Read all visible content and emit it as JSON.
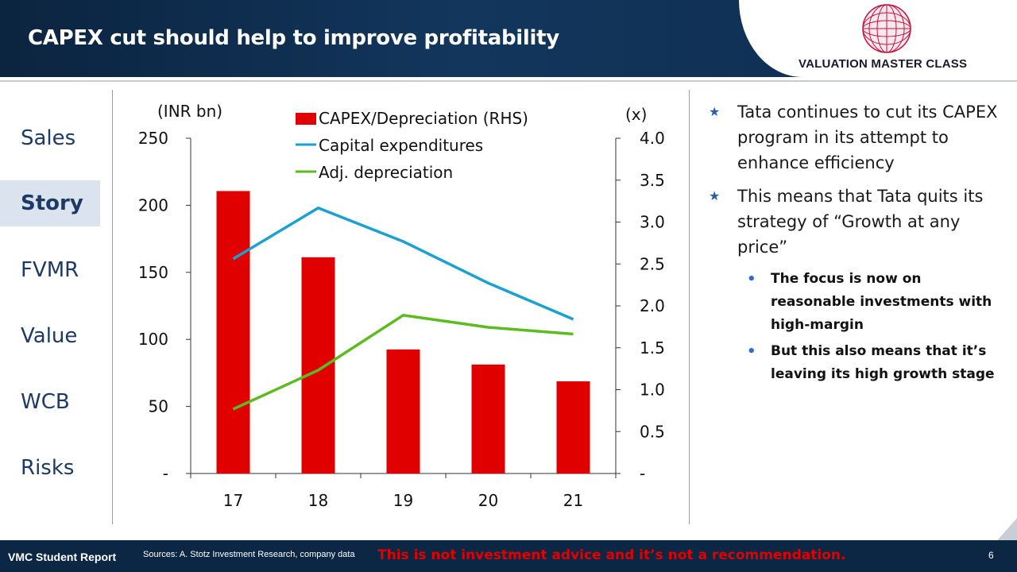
{
  "header": {
    "title": "CAPEX cut should help to improve profitability",
    "logo_text": "VALUATION MASTER CLASS"
  },
  "nav": {
    "items": [
      {
        "label": "Sales",
        "active": false
      },
      {
        "label": "Story",
        "active": true
      },
      {
        "label": "FVMR",
        "active": false
      },
      {
        "label": "Value",
        "active": false
      },
      {
        "label": "WCB",
        "active": false
      },
      {
        "label": "Risks",
        "active": false
      }
    ]
  },
  "chart_data": {
    "type": "bar",
    "left_unit": "(INR bn)",
    "right_unit": "(x)",
    "categories": [
      "17",
      "18",
      "19",
      "20",
      "21"
    ],
    "left_ticks": [
      "-",
      "50",
      "100",
      "150",
      "200",
      "250"
    ],
    "right_ticks": [
      "-",
      "0.5",
      "1.0",
      "1.5",
      "2.0",
      "2.5",
      "3.0",
      "3.5",
      "4.0"
    ],
    "ylim_left": [
      0,
      250
    ],
    "ylim_right": [
      0,
      4.0
    ],
    "series": [
      {
        "name": "CAPEX/Depreciation (RHS)",
        "type": "bar",
        "axis": "right",
        "color": "#e00000",
        "values": [
          3.37,
          2.58,
          1.48,
          1.3,
          1.1
        ]
      },
      {
        "name": "Capital expenditures",
        "type": "line",
        "axis": "left",
        "color": "#1ba1d1",
        "values": [
          160,
          198,
          173,
          142,
          115
        ]
      },
      {
        "name": "Adj. depreciation",
        "type": "line",
        "axis": "left",
        "color": "#5bbb1f",
        "values": [
          48,
          77,
          118,
          109,
          104
        ]
      }
    ],
    "legend_position": "top"
  },
  "bullets": [
    {
      "text": "Tata continues to cut its CAPEX program in its attempt to enhance efficiency",
      "sub": []
    },
    {
      "text": "This means that Tata quits its strategy of “Growth at any price”",
      "sub": [
        "The focus is now on reasonable investments with high-margin",
        "But this also means that it’s leaving its high growth stage"
      ]
    }
  ],
  "footer": {
    "left": "VMC Student Report",
    "sources": "Sources: A. Stotz Investment Research, company data",
    "warning": "This is not investment advice and it’s not a recommendation.",
    "page": "6"
  },
  "colors": {
    "accent_red": "#e00000",
    "navy": "#0c2744",
    "nav_text": "#1d3a66"
  }
}
